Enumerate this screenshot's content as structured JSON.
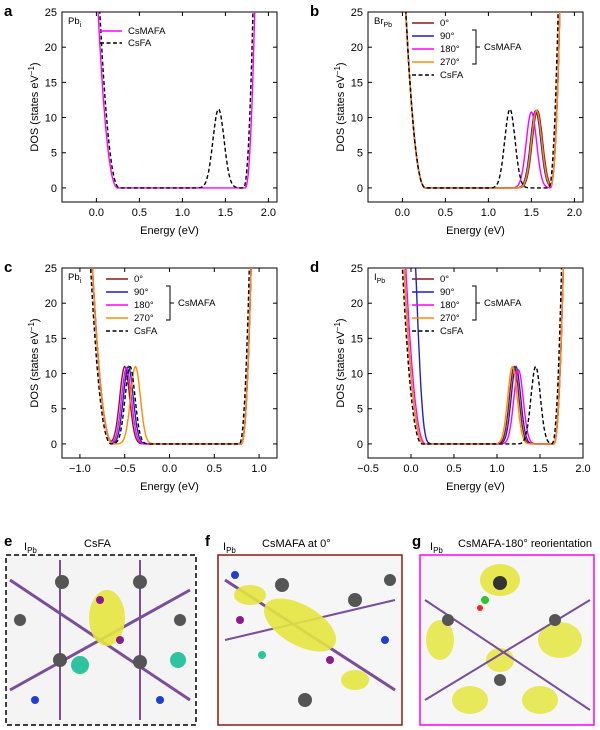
{
  "panel_letters": {
    "a": "a",
    "b": "b",
    "c": "c",
    "d": "d",
    "e": "e",
    "f": "f",
    "g": "g"
  },
  "chart_data": [
    {
      "panel": "a",
      "type": "line",
      "inset_label": "Pb",
      "inset_label_sub": "i",
      "xlabel": "Energy (eV)",
      "ylabel": "DOS (states eV",
      "ylabel_sup": "−1",
      "ylabel_end": ")",
      "xlim": [
        -0.4,
        2.1
      ],
      "ylim": [
        -2,
        25
      ],
      "xticks": [
        0.0,
        0.5,
        1.0,
        1.5,
        2.0
      ],
      "xtick_labels": [
        "0.0",
        "0.5",
        "1.0",
        "1.5",
        "2.0"
      ],
      "yticks": [
        0,
        5,
        10,
        15,
        20,
        25
      ],
      "ytick_labels": [
        "0",
        "5",
        "10",
        "15",
        "20",
        "25"
      ],
      "legend": [
        "CsMAFA",
        "CsFA"
      ],
      "series": [
        {
          "name": "CsMAFA",
          "color": "#ff00ff",
          "dash": "solid",
          "vb_edge": 0.0,
          "cb_edge": 1.85,
          "peaks": []
        },
        {
          "name": "CsFA",
          "color": "#000000",
          "dash": "dashed",
          "vb_edge": 0.02,
          "cb_edge": 1.83,
          "peaks": [
            {
              "x": 1.42,
              "h": 11.2,
              "w": 0.065
            }
          ]
        }
      ]
    },
    {
      "panel": "b",
      "type": "line",
      "inset_label": "Br",
      "inset_label_sub": "Pb",
      "xlabel": "Energy (eV)",
      "ylabel": "DOS (states eV",
      "ylabel_sup": "−1",
      "ylabel_end": ")",
      "xlim": [
        -0.4,
        2.1
      ],
      "ylim": [
        -2,
        25
      ],
      "xticks": [
        0.0,
        0.5,
        1.0,
        1.5,
        2.0
      ],
      "xtick_labels": [
        "0.0",
        "0.5",
        "1.0",
        "1.5",
        "2.0"
      ],
      "yticks": [
        0,
        5,
        10,
        15,
        20,
        25
      ],
      "ytick_labels": [
        "0",
        "5",
        "10",
        "15",
        "20",
        "25"
      ],
      "legend": [
        "0°",
        "90°",
        "180°",
        "270°",
        "CsFA"
      ],
      "legend_group": "CsMAFA",
      "series": [
        {
          "name": "0°",
          "color": "#8b1a1a",
          "dash": "solid",
          "vb_edge": 0.02,
          "cb_edge": 1.84,
          "peaks": [
            {
              "x": 1.57,
              "h": 11.0,
              "w": 0.06
            }
          ]
        },
        {
          "name": "90°",
          "color": "#1f1fd0",
          "dash": "solid",
          "vb_edge": 0.02,
          "cb_edge": 1.84,
          "peaks": [
            {
              "x": 1.55,
              "h": 11.0,
              "w": 0.06
            }
          ]
        },
        {
          "name": "180°",
          "color": "#ff00ff",
          "dash": "solid",
          "vb_edge": 0.02,
          "cb_edge": 1.84,
          "peaks": [
            {
              "x": 1.5,
              "h": 10.8,
              "w": 0.06
            }
          ]
        },
        {
          "name": "270°",
          "color": "#ff8c00",
          "dash": "solid",
          "vb_edge": 0.02,
          "cb_edge": 1.84,
          "peaks": [
            {
              "x": 1.56,
              "h": 11.0,
              "w": 0.06
            }
          ]
        },
        {
          "name": "CsFA",
          "color": "#000000",
          "dash": "dashed",
          "vb_edge": 0.02,
          "cb_edge": 1.82,
          "peaks": [
            {
              "x": 1.25,
              "h": 11.2,
              "w": 0.06
            }
          ]
        }
      ]
    },
    {
      "panel": "c",
      "type": "line",
      "inset_label": "Pb",
      "inset_label_sub": "i",
      "xlabel": "Energy (eV)",
      "ylabel": "DOS (states eV",
      "ylabel_sup": "−1",
      "ylabel_end": ")",
      "xlim": [
        -1.2,
        1.2
      ],
      "ylim": [
        -2,
        25
      ],
      "xticks": [
        -1.0,
        -0.5,
        0.0,
        0.5,
        1.0
      ],
      "xtick_labels": [
        "−1.0",
        "−0.5",
        "0.0",
        "0.5",
        "1.0"
      ],
      "yticks": [
        0,
        5,
        10,
        15,
        20,
        25
      ],
      "ytick_labels": [
        "0",
        "5",
        "10",
        "15",
        "20",
        "25"
      ],
      "legend": [
        "0°",
        "90°",
        "180°",
        "270°",
        "CsFA"
      ],
      "legend_group": "CsMAFA",
      "series": [
        {
          "name": "0°",
          "color": "#8b1a1a",
          "dash": "solid",
          "vb_edge": -0.88,
          "cb_edge": 0.92,
          "peaks": [
            {
              "x": -0.5,
              "h": 11.0,
              "w": 0.055
            }
          ]
        },
        {
          "name": "90°",
          "color": "#1f1fd0",
          "dash": "solid",
          "vb_edge": -0.88,
          "cb_edge": 0.92,
          "peaks": [
            {
              "x": -0.46,
              "h": 11.0,
              "w": 0.055
            }
          ]
        },
        {
          "name": "180°",
          "color": "#ff00ff",
          "dash": "solid",
          "vb_edge": -0.88,
          "cb_edge": 0.92,
          "peaks": [
            {
              "x": -0.48,
              "h": 10.8,
              "w": 0.055
            }
          ]
        },
        {
          "name": "270°",
          "color": "#ff8c00",
          "dash": "solid",
          "vb_edge": -0.88,
          "cb_edge": 0.92,
          "peaks": [
            {
              "x": -0.38,
              "h": 11.0,
              "w": 0.055
            }
          ]
        },
        {
          "name": "CsFA",
          "color": "#000000",
          "dash": "dashed",
          "vb_edge": -0.9,
          "cb_edge": 0.9,
          "peaks": [
            {
              "x": -0.44,
              "h": 11.0,
              "w": 0.055
            }
          ]
        }
      ]
    },
    {
      "panel": "d",
      "type": "line",
      "inset_label": "I",
      "inset_label_sub": "Pb",
      "xlabel": "Energy (eV)",
      "ylabel": "DOS (states eV",
      "ylabel_sup": "−1",
      "ylabel_end": ")",
      "xlim": [
        -0.5,
        2.0
      ],
      "ylim": [
        -2,
        25
      ],
      "xticks": [
        -0.5,
        0.0,
        0.5,
        1.0,
        1.5,
        2.0
      ],
      "xtick_labels": [
        "−0.5",
        "0.0",
        "0.5",
        "1.0",
        "1.5",
        "2.0"
      ],
      "yticks": [
        0,
        5,
        10,
        15,
        20,
        25
      ],
      "ytick_labels": [
        "0",
        "5",
        "10",
        "15",
        "20",
        "25"
      ],
      "legend": [
        "0°",
        "90°",
        "180°",
        "270°",
        "CsFA"
      ],
      "legend_group": "CsMAFA",
      "series": [
        {
          "name": "0°",
          "color": "#8b1a1a",
          "dash": "solid",
          "vb_edge": -0.1,
          "cb_edge": 1.78,
          "peaks": [
            {
              "x": 1.2,
              "h": 11.0,
              "w": 0.055
            }
          ]
        },
        {
          "name": "90°",
          "color": "#1f1fd0",
          "dash": "solid",
          "vb_edge": -0.05,
          "cb_edge": 1.78,
          "peaks": [
            {
              "x": 0.02,
              "h": 18.5,
              "w": 0.06
            },
            {
              "x": 1.22,
              "h": 11.0,
              "w": 0.055
            }
          ]
        },
        {
          "name": "180°",
          "color": "#ff00ff",
          "dash": "solid",
          "vb_edge": -0.08,
          "cb_edge": 1.78,
          "peaks": [
            {
              "x": 1.25,
              "h": 10.5,
              "w": 0.055
            }
          ]
        },
        {
          "name": "270°",
          "color": "#ff8c00",
          "dash": "solid",
          "vb_edge": -0.1,
          "cb_edge": 1.78,
          "peaks": [
            {
              "x": 1.18,
              "h": 11.0,
              "w": 0.055
            }
          ]
        },
        {
          "name": "CsFA",
          "color": "#000000",
          "dash": "dashed",
          "vb_edge": -0.12,
          "cb_edge": 1.76,
          "peaks": [
            {
              "x": 1.45,
              "h": 11.0,
              "w": 0.055
            }
          ]
        }
      ]
    }
  ],
  "structures": [
    {
      "panel": "e",
      "label": "I",
      "label_sub": "Pb",
      "title": "CsFA",
      "frame_color": "#000000",
      "frame_style": "dashed"
    },
    {
      "panel": "f",
      "label": "I",
      "label_sub": "Pb",
      "title": "CsMAFA at 0°",
      "frame_color": "#8b1a1a",
      "frame_style": "solid"
    },
    {
      "panel": "g",
      "label": "I",
      "label_sub": "Pb",
      "title": "CsMAFA-180° reorientation",
      "frame_color": "#ff00ff",
      "frame_style": "solid"
    }
  ]
}
